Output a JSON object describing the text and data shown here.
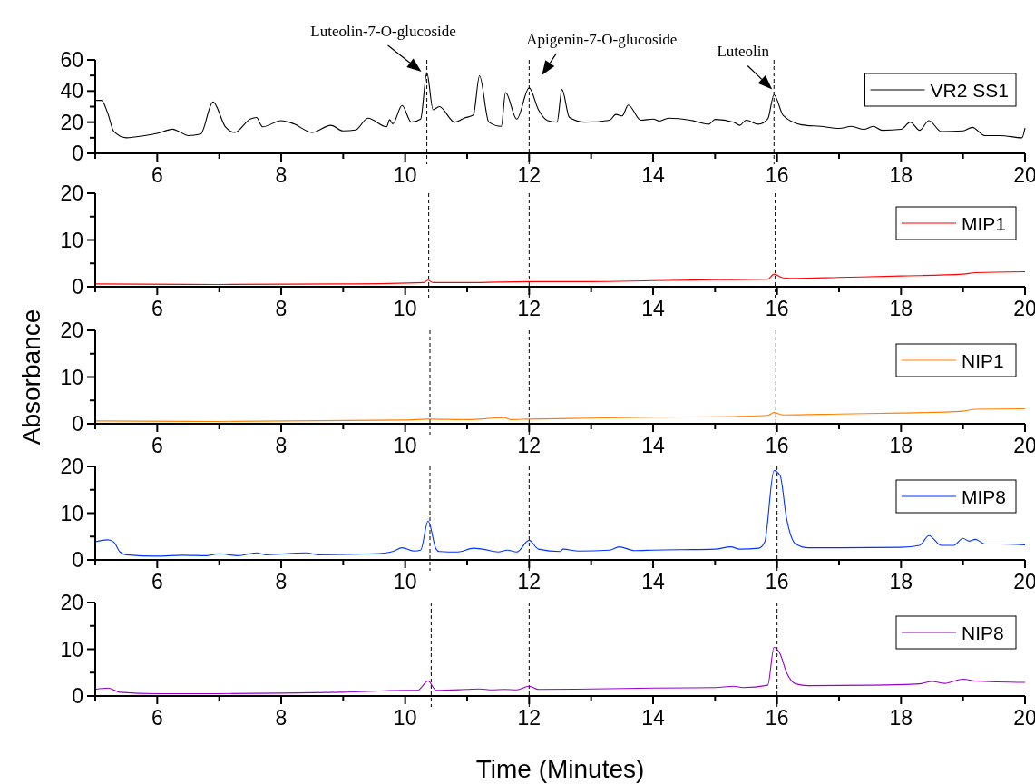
{
  "chart_data": [
    {
      "type": "line",
      "xlim": [
        5,
        20
      ],
      "xticks": [
        {
          "value": 5,
          "label": null
        },
        6,
        {
          "value": 7,
          "label": null
        },
        8,
        {
          "value": 9,
          "label": null
        },
        10,
        {
          "value": 11,
          "label": null
        },
        12,
        {
          "value": 13,
          "label": null
        },
        14,
        {
          "value": 15,
          "label": null
        },
        16,
        {
          "value": 17,
          "label": null
        },
        18,
        {
          "value": 19,
          "label": null
        },
        20
      ],
      "ylim": [
        0,
        60
      ],
      "yticks": [
        0,
        {
          "value": 10,
          "label": null
        },
        20,
        {
          "value": 30,
          "label": null
        },
        40,
        {
          "value": 50,
          "label": null
        },
        60
      ],
      "legend": "top right",
      "grid": false,
      "marker": "none",
      "line_style": "solid",
      "series": [
        {
          "name": "VR2 SS1",
          "color": "#000000",
          "x": [
            5,
            5.1,
            5.2,
            5.3,
            5.5,
            5.8,
            6,
            6.25,
            6.35,
            6.5,
            6.7,
            6.9,
            7.1,
            7.25,
            7.5,
            7.6,
            7.7,
            8,
            8.2,
            8.5,
            8.8,
            9,
            9.2,
            9.4,
            9.7,
            9.75,
            9.8,
            9.95,
            10.1,
            10.25,
            10.35,
            10.45,
            10.55,
            10.8,
            10.95,
            11.1,
            11.2,
            11.35,
            11.55,
            11.62,
            11.8,
            12,
            12.15,
            12.3,
            12.45,
            12.53,
            12.65,
            12.9,
            13.3,
            13.4,
            13.5,
            13.6,
            13.8,
            14,
            14.1,
            14.25,
            14.6,
            14.9,
            15,
            15.3,
            15.4,
            15.5,
            15.7,
            15.85,
            15.95,
            16.1,
            16.4,
            16.7,
            17,
            17.2,
            17.4,
            17.55,
            17.7,
            18,
            18.15,
            18.3,
            18.45,
            18.65,
            19,
            19.15,
            19.35,
            19.6,
            19.95,
            20
          ],
          "values": [
            34,
            34,
            26,
            14,
            10,
            11.4,
            12.8,
            15.5,
            14,
            11.4,
            12.4,
            33,
            17,
            13.4,
            22,
            23,
            17,
            21,
            19,
            13.4,
            18,
            14.4,
            15,
            22.6,
            17,
            21.6,
            19,
            30.7,
            20,
            22,
            51.8,
            28,
            30,
            20,
            22.6,
            24.6,
            49.8,
            20,
            17.3,
            39,
            22,
            42,
            28,
            21,
            20,
            41,
            23,
            20,
            21.3,
            25,
            24,
            31,
            21.3,
            22,
            20.7,
            22.6,
            21.3,
            18.7,
            21.8,
            20,
            18,
            21.3,
            18.7,
            22,
            37.6,
            24.2,
            18.3,
            17.3,
            16,
            17.3,
            15.4,
            17.3,
            14.8,
            15.4,
            20,
            14.8,
            21,
            14,
            14.4,
            16.7,
            11.4,
            11.4,
            10,
            16.3
          ]
        }
      ],
      "ref_lines": [
        {
          "axis": "x",
          "value": 10.35,
          "color": "#000000",
          "line_style": "dashed"
        },
        {
          "axis": "x",
          "value": 12,
          "color": "#000000",
          "line_style": "dashed"
        },
        {
          "axis": "x",
          "value": 15.95,
          "color": "#000000",
          "line_style": "dashed"
        }
      ],
      "annotations": [
        {
          "text": "Luteolin-7-O-glucoside",
          "x": 10.35,
          "y": 51.8
        },
        {
          "text": "Apigenin-7-O-glucoside",
          "x": 12,
          "y": 42
        },
        {
          "text": "Luteolin",
          "x": 15.95,
          "y": 37.6
        }
      ]
    },
    {
      "type": "line",
      "xlim": [
        5,
        20
      ],
      "xticks": [
        {
          "value": 5,
          "label": null
        },
        6,
        {
          "value": 7,
          "label": null
        },
        8,
        {
          "value": 9,
          "label": null
        },
        10,
        {
          "value": 11,
          "label": null
        },
        12,
        {
          "value": 13,
          "label": null
        },
        14,
        {
          "value": 15,
          "label": null
        },
        16,
        {
          "value": 17,
          "label": null
        },
        18,
        {
          "value": 19,
          "label": null
        },
        20
      ],
      "ylim": [
        0,
        20
      ],
      "yticks": [
        0,
        {
          "value": 5,
          "label": null
        },
        10,
        {
          "value": 15,
          "label": null
        },
        20
      ],
      "legend": "top right",
      "grid": false,
      "marker": "none",
      "line_style": "solid",
      "series": [
        {
          "name": "MIP1",
          "color": "#ff0000",
          "x": [
            5,
            7,
            9,
            10.3,
            10.37,
            10.45,
            11,
            12,
            13,
            14,
            15,
            15.85,
            15.95,
            16.1,
            16.3,
            17,
            18,
            19,
            19.2,
            20
          ],
          "values": [
            0.6,
            0.5,
            0.6,
            0.9,
            1.4,
            0.9,
            0.9,
            1.1,
            1.1,
            1.3,
            1.5,
            1.6,
            2.7,
            1.9,
            1.8,
            2,
            2.3,
            2.7,
            3,
            3.2
          ]
        }
      ],
      "ref_lines": [
        {
          "axis": "x",
          "value": 10.38,
          "color": "#000000",
          "line_style": "dashed"
        },
        {
          "axis": "x",
          "value": 12,
          "color": "#000000",
          "line_style": "dashed"
        },
        {
          "axis": "x",
          "value": 15.97,
          "color": "#000000",
          "line_style": "dashed"
        }
      ]
    },
    {
      "type": "line",
      "ylabel": "Absorbance",
      "xlim": [
        5,
        20
      ],
      "xticks": [
        {
          "value": 5,
          "label": null
        },
        6,
        {
          "value": 7,
          "label": null
        },
        8,
        {
          "value": 9,
          "label": null
        },
        10,
        {
          "value": 11,
          "label": null
        },
        12,
        {
          "value": 13,
          "label": null
        },
        14,
        {
          "value": 15,
          "label": null
        },
        16,
        {
          "value": 17,
          "label": null
        },
        18,
        {
          "value": 19,
          "label": null
        },
        20
      ],
      "ylim": [
        0,
        20
      ],
      "yticks": [
        0,
        {
          "value": 5,
          "label": null
        },
        10,
        {
          "value": 15,
          "label": null
        },
        20
      ],
      "legend": "top right",
      "grid": false,
      "marker": "none",
      "line_style": "solid",
      "series": [
        {
          "name": "NIP1",
          "color": "#ff8000",
          "x": [
            5,
            7,
            10,
            10.37,
            11,
            11.6,
            11.7,
            12,
            13,
            14,
            15,
            15.85,
            15.95,
            16.1,
            17,
            18,
            19,
            19.2,
            20
          ],
          "values": [
            0.6,
            0.5,
            0.8,
            1,
            0.9,
            1.3,
            0.9,
            1,
            1.2,
            1.4,
            1.5,
            1.8,
            2.4,
            1.9,
            2.1,
            2.3,
            2.7,
            3.1,
            3.2
          ]
        }
      ],
      "ref_lines": [
        {
          "axis": "x",
          "value": 10.4,
          "color": "#000000",
          "line_style": "dashed"
        },
        {
          "axis": "x",
          "value": 12,
          "color": "#000000",
          "line_style": "dashed"
        },
        {
          "axis": "x",
          "value": 15.98,
          "color": "#000000",
          "line_style": "dashed"
        }
      ]
    },
    {
      "type": "line",
      "xlim": [
        5,
        20
      ],
      "xticks": [
        {
          "value": 5,
          "label": null
        },
        6,
        {
          "value": 7,
          "label": null
        },
        8,
        {
          "value": 9,
          "label": null
        },
        10,
        {
          "value": 11,
          "label": null
        },
        12,
        {
          "value": 13,
          "label": null
        },
        14,
        {
          "value": 15,
          "label": null
        },
        16,
        {
          "value": 17,
          "label": null
        },
        18,
        {
          "value": 19,
          "label": null
        },
        20
      ],
      "ylim": [
        0,
        20
      ],
      "yticks": [
        0,
        {
          "value": 5,
          "label": null
        },
        10,
        {
          "value": 15,
          "label": null
        },
        20
      ],
      "legend": "top right",
      "grid": false,
      "marker": "none",
      "line_style": "solid",
      "series": [
        {
          "name": "MIP8",
          "color": "#0033ff",
          "x": [
            5,
            5.2,
            5.3,
            5.4,
            5.5,
            6,
            6.4,
            6.8,
            7,
            7.3,
            7.6,
            7.75,
            8.4,
            8.6,
            9.5,
            9.8,
            9.95,
            10.15,
            10.25,
            10.37,
            10.5,
            10.55,
            10.85,
            11.1,
            11.25,
            11.5,
            11.65,
            11.8,
            12,
            12.15,
            12.5,
            12.55,
            12.8,
            13.3,
            13.45,
            13.7,
            14,
            15,
            15.25,
            15.4,
            15.7,
            15.8,
            15.95,
            16.05,
            16.15,
            16.3,
            16.5,
            17,
            18,
            18.3,
            18.45,
            18.65,
            18.85,
            19,
            19.1,
            19.2,
            19.35,
            19.6,
            20
          ],
          "values": [
            3.9,
            4.3,
            3.8,
            1.7,
            1.1,
            0.8,
            1,
            0.9,
            1.3,
            0.9,
            1.5,
            1.1,
            1.5,
            1.1,
            1.3,
            1.8,
            2.6,
            1.9,
            2.1,
            8.3,
            2.3,
            1.8,
            1.7,
            2.5,
            2.3,
            1.7,
            2.1,
            1.7,
            4.2,
            2.3,
            1.8,
            2.3,
            1.9,
            2.1,
            2.8,
            2,
            2.1,
            2.3,
            2.8,
            2.3,
            2.5,
            3.8,
            19.1,
            18,
            9.1,
            3.4,
            2.6,
            2.6,
            2.7,
            3.1,
            5.2,
            3.1,
            3.1,
            4.6,
            4,
            4.4,
            3.4,
            3.4,
            3.2
          ]
        }
      ],
      "ref_lines": [
        {
          "axis": "x",
          "value": 10.4,
          "color": "#000000",
          "line_style": "dashed"
        },
        {
          "axis": "x",
          "value": 12,
          "color": "#000000",
          "line_style": "dashed"
        },
        {
          "axis": "x",
          "value": 16,
          "color": "#000000",
          "line_style": "dashed"
        }
      ]
    },
    {
      "type": "line",
      "xlabel": "Time (Minutes)",
      "xlim": [
        5,
        20
      ],
      "xticks": [
        {
          "value": 5,
          "label": null
        },
        6,
        {
          "value": 7,
          "label": null
        },
        8,
        {
          "value": 9,
          "label": null
        },
        10,
        {
          "value": 11,
          "label": null
        },
        12,
        {
          "value": 13,
          "label": null
        },
        14,
        {
          "value": 15,
          "label": null
        },
        16,
        {
          "value": 17,
          "label": null
        },
        18,
        {
          "value": 19,
          "label": null
        },
        20
      ],
      "ylim": [
        0,
        20
      ],
      "yticks": [
        0,
        {
          "value": 5,
          "label": null
        },
        10,
        {
          "value": 15,
          "label": null
        },
        20
      ],
      "legend": "top right",
      "grid": false,
      "marker": "none",
      "line_style": "solid",
      "series": [
        {
          "name": "NIP8",
          "color": "#9900cc",
          "x": [
            5,
            5.2,
            5.4,
            6,
            7,
            8,
            9,
            10,
            10.2,
            10.37,
            10.5,
            11,
            11.2,
            11.4,
            11.6,
            11.8,
            12,
            12.15,
            13,
            14,
            15,
            15.3,
            15.45,
            15.85,
            15.95,
            16.05,
            16.15,
            16.3,
            16.5,
            17.5,
            18.3,
            18.5,
            18.7,
            19,
            19.2,
            20
          ],
          "values": [
            1.4,
            1.7,
            0.8,
            0.5,
            0.5,
            0.6,
            0.8,
            1.2,
            1.2,
            3.2,
            1.2,
            1.4,
            1.5,
            1.3,
            1.4,
            1.3,
            2.1,
            1.4,
            1.5,
            1.7,
            1.8,
            2.1,
            1.8,
            2.3,
            10.4,
            9,
            5.1,
            2.6,
            2.2,
            2.3,
            2.6,
            3.1,
            2.7,
            3.6,
            3.2,
            2.9
          ]
        }
      ],
      "ref_lines": [
        {
          "axis": "x",
          "value": 10.42,
          "color": "#000000",
          "line_style": "dashed"
        },
        {
          "axis": "x",
          "value": 12,
          "color": "#000000",
          "line_style": "dashed"
        },
        {
          "axis": "x",
          "value": 16,
          "color": "#000000",
          "line_style": "dashed"
        }
      ]
    }
  ]
}
